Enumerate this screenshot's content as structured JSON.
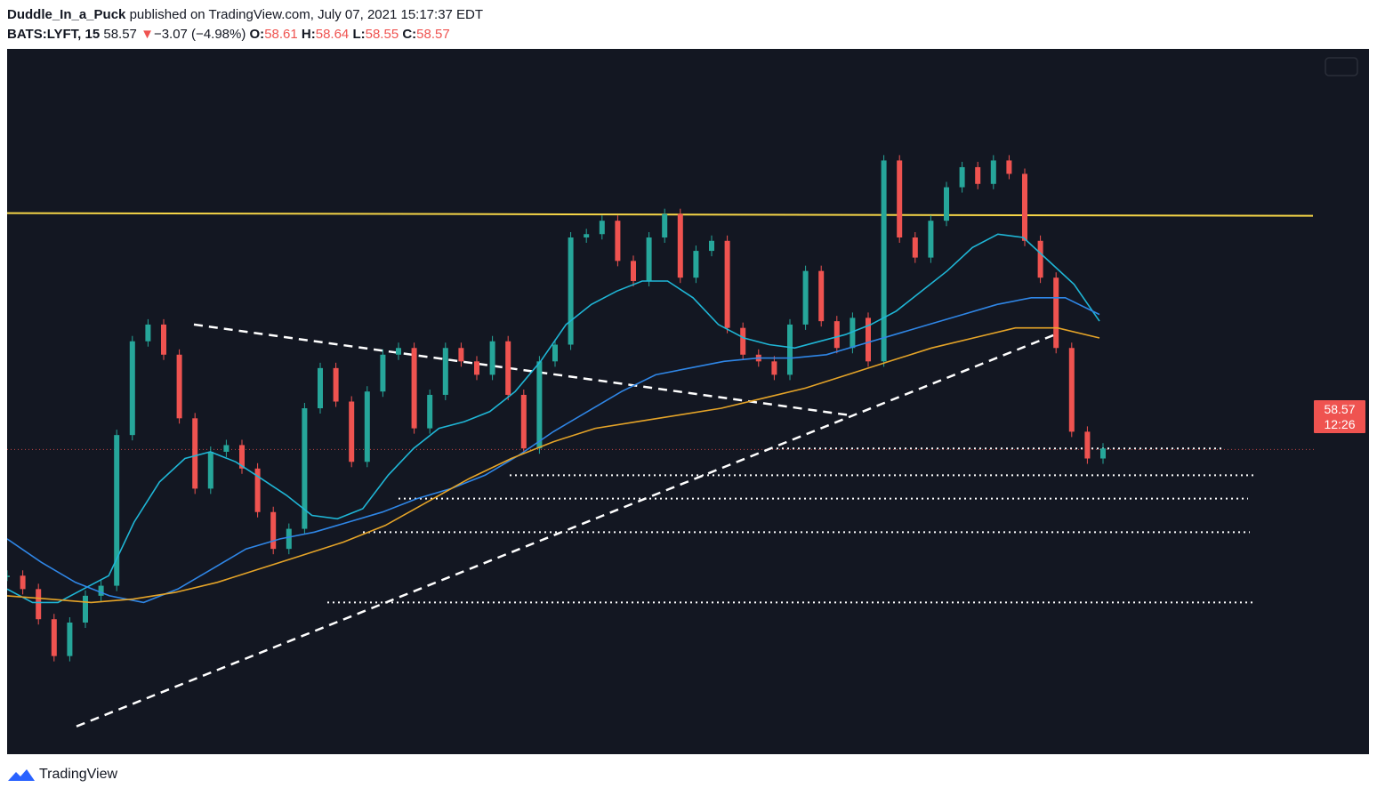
{
  "header": {
    "author": "Duddle_In_a_Puck",
    "published_text": "published on TradingView.com, July 07, 2021 15:17:37 EDT",
    "symbol": "BATS:LYFT, 15",
    "last": "58.57",
    "change_arrow": "▼",
    "change": "−3.07 (−4.98%)",
    "o_label": "O:",
    "o_value": "58.61",
    "h_label": "H:",
    "h_value": "58.64",
    "l_label": "L:",
    "l_value": "58.55",
    "c_label": "C:",
    "c_value": "58.57"
  },
  "price_tag": {
    "price": "58.57",
    "countdown": "12:26"
  },
  "footer": {
    "brand": "TradingView",
    "logo_icon": "tradingview-logo-icon"
  },
  "colors": {
    "background": "#131722",
    "up": "#26a69a",
    "down": "#ef5350",
    "resistance": "#f5d547",
    "ema_fast": "#1fb6d6",
    "ema_mid": "#2f86e6",
    "ema_slow": "#e5a428",
    "drawing": "#ffffff"
  },
  "chart_data": {
    "type": "line",
    "symbol": "BATS:LYFT",
    "interval": "15",
    "ylim": [
      50,
      70
    ],
    "last_price": 58.57,
    "resistance_level": 65.6,
    "support_levels": [
      58.6,
      57.8,
      57.1,
      56.1,
      54.0
    ],
    "series": [
      {
        "values": [
          54.8,
          54.4,
          53.5,
          52.4,
          53.4,
          54.2,
          54.5,
          59.0,
          61.8,
          62.3,
          61.4,
          59.5,
          57.4,
          58.5,
          58.7,
          58.0,
          56.7,
          55.6,
          56.2,
          59.8,
          61.0,
          60.0,
          58.2,
          60.3,
          61.4,
          61.6,
          59.2,
          60.2,
          61.6,
          61.2,
          60.8,
          61.8,
          60.2,
          58.6,
          61.2,
          61.7,
          64.9,
          65.0,
          65.4,
          64.2,
          63.6,
          64.9,
          65.6,
          63.7,
          64.5,
          64.8,
          62.2,
          61.4,
          61.2,
          60.8,
          62.3,
          63.9,
          62.4,
          61.6,
          62.5,
          61.2,
          67.2,
          64.9,
          64.3,
          65.4,
          66.4,
          67.0,
          66.5,
          67.2,
          66.8,
          64.8,
          63.7,
          61.6,
          59.1,
          58.3,
          58.6
        ]
      },
      {
        "values": [
          54.4,
          54.0,
          54.0,
          54.4,
          54.8,
          56.4,
          57.6,
          58.3,
          58.5,
          58.2,
          57.7,
          57.2,
          56.6,
          56.5,
          56.8,
          57.8,
          58.6,
          59.2,
          59.4,
          59.7,
          60.3,
          61.2,
          62.3,
          62.9,
          63.3,
          63.6,
          63.6,
          63.1,
          62.3,
          61.9,
          61.7,
          61.6,
          61.8,
          62.0,
          62.3,
          62.7,
          63.3,
          63.9,
          64.6,
          65.0,
          64.9,
          64.2,
          63.5,
          62.4
        ]
      },
      {
        "values": [
          55.9,
          55.2,
          54.6,
          54.2,
          54.0,
          54.4,
          55.0,
          55.6,
          55.9,
          56.1,
          56.4,
          56.7,
          57.1,
          57.4,
          57.8,
          58.4,
          59.1,
          59.7,
          60.3,
          60.8,
          61.0,
          61.2,
          61.3,
          61.3,
          61.4,
          61.7,
          62.0,
          62.3,
          62.6,
          62.9,
          63.1,
          63.1,
          62.6
        ]
      },
      {
        "values": [
          54.2,
          54.1,
          54.0,
          54.1,
          54.3,
          54.6,
          55.0,
          55.4,
          55.8,
          56.3,
          57.0,
          57.7,
          58.3,
          58.8,
          59.2,
          59.4,
          59.6,
          59.8,
          60.1,
          60.4,
          60.8,
          61.2,
          61.6,
          61.9,
          62.2,
          62.2,
          61.9
        ]
      }
    ]
  }
}
